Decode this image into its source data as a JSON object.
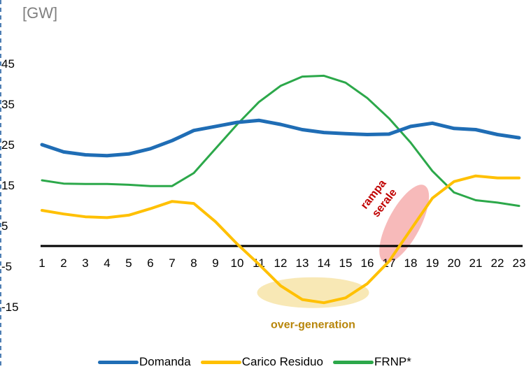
{
  "chart_data": {
    "type": "line",
    "unit_label": "[GW]",
    "x": [
      1,
      2,
      3,
      4,
      5,
      6,
      7,
      8,
      9,
      10,
      11,
      12,
      13,
      14,
      15,
      16,
      17,
      18,
      19,
      20,
      21,
      22,
      23
    ],
    "yticks": [
      45,
      35,
      25,
      15,
      5,
      -5,
      -15
    ],
    "ylim": [
      -15,
      45
    ],
    "series": [
      {
        "name": "Domanda",
        "color": "#1f6db5",
        "values": [
          25.0,
          23.2,
          22.5,
          22.3,
          22.7,
          24.0,
          26.0,
          28.5,
          29.5,
          30.5,
          31.0,
          30.0,
          28.7,
          28.0,
          27.7,
          27.5,
          27.6,
          29.5,
          30.3,
          29.0,
          28.7,
          27.5,
          26.7
        ]
      },
      {
        "name": "Carico Residuo",
        "color": "#ffc000",
        "values": [
          8.8,
          7.9,
          7.2,
          7.0,
          7.6,
          9.2,
          11.0,
          10.5,
          6.0,
          0.5,
          -4.5,
          -9.8,
          -13.2,
          -14.0,
          -12.8,
          -9.3,
          -3.8,
          4.0,
          11.8,
          15.9,
          17.3,
          16.8,
          16.8
        ]
      },
      {
        "name": "FRNP*",
        "color": "#2ca84a",
        "values": [
          16.2,
          15.4,
          15.3,
          15.3,
          15.1,
          14.8,
          14.8,
          18.0,
          24.0,
          30.0,
          35.5,
          39.5,
          41.8,
          42.0,
          40.3,
          36.5,
          31.5,
          25.5,
          18.5,
          13.2,
          11.3,
          10.7,
          9.9
        ]
      }
    ],
    "annotations": {
      "over_generation": "over-generation",
      "ramp": "rampa serale"
    }
  }
}
